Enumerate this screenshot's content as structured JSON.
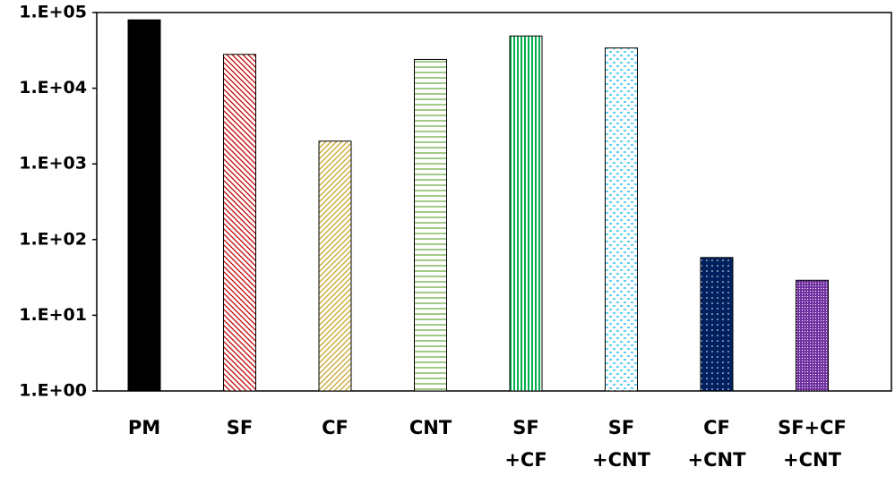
{
  "chart_data": {
    "type": "bar",
    "categories": [
      "PM",
      "SF",
      "CF",
      "CNT",
      "SF\n+CF",
      "SF\n+CNT",
      "CF\n+CNT",
      "SF+CF\n+CNT"
    ],
    "values": [
      80000,
      28000,
      2000,
      24000,
      49000,
      34000,
      58,
      29
    ],
    "colors": [
      "#000000",
      "#c00000",
      "#c9a227",
      "#70ad47",
      "#00b050",
      "#00b0f0",
      "#002060",
      "#7030a0"
    ],
    "patterns": [
      "solid",
      "diagonal-down",
      "diagonal-up",
      "horizontal",
      "vertical",
      "dashes",
      "dots",
      "dense-dots"
    ],
    "log_scale": true,
    "ylim": [
      1,
      100000
    ],
    "yticks": [
      {
        "value": 1,
        "label": "1.E+00"
      },
      {
        "value": 10,
        "label": "1.E+01"
      },
      {
        "value": 100,
        "label": "1.E+02"
      },
      {
        "value": 1000,
        "label": "1.E+03"
      },
      {
        "value": 10000,
        "label": "1.E+04"
      },
      {
        "value": 100000,
        "label": "1.E+05"
      }
    ],
    "grid": false
  }
}
